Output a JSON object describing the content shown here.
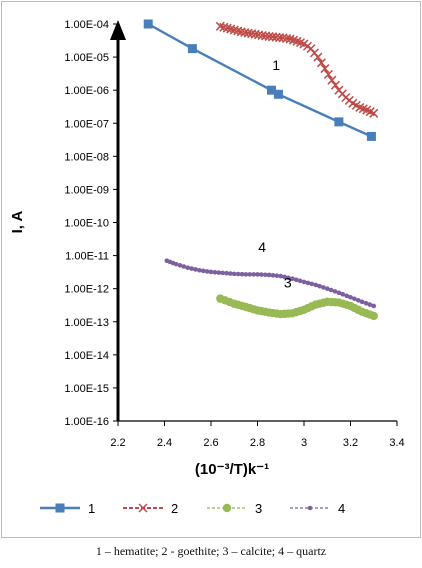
{
  "chart_data": {
    "type": "scatter",
    "xlabel": "(10⁻³/T)k⁻¹",
    "ylabel": "I, A",
    "xlim": [
      2.2,
      3.4
    ],
    "ylim_log10": [
      -16,
      -4
    ],
    "yscale": "log",
    "x_ticks": [
      "2.2",
      "2.4",
      "2.6",
      "2.8",
      "3",
      "3.2",
      "3.4"
    ],
    "y_ticks": [
      "1.00E-16",
      "1.00E-15",
      "1.00E-14",
      "1.00E-13",
      "1.00E-12",
      "1.00E-11",
      "1.00E-10",
      "1.00E-09",
      "1.00E-08",
      "1.00E-07",
      "1.00E-06",
      "1.00E-05",
      "1.00E-04"
    ],
    "grid": false,
    "legend_position": "bottom",
    "annotations": [
      {
        "text": "1",
        "x": 2.88,
        "y": 4e-06
      },
      {
        "text": "4",
        "x": 2.82,
        "y": 1.3e-11
      },
      {
        "text": "3",
        "x": 2.93,
        "y": 1.1e-12
      }
    ],
    "series": [
      {
        "name": "1",
        "color": "#4a7ebb",
        "marker": "square",
        "x": [
          2.33,
          2.52,
          2.86,
          2.89,
          3.15,
          3.29
        ],
        "y": [
          0.0001,
          1.8e-05,
          1e-06,
          7.5e-07,
          1.1e-07,
          4e-08
        ]
      },
      {
        "name": "2",
        "color": "#be4b48",
        "marker": "x",
        "x": [
          2.64,
          2.67,
          2.7,
          2.73,
          2.76,
          2.79,
          2.82,
          2.85,
          2.88,
          2.91,
          2.94,
          2.97,
          3.0,
          3.03,
          3.06,
          3.09,
          3.12,
          3.15,
          3.18,
          3.21,
          3.24,
          3.27,
          3.3
        ],
        "y": [
          8.5e-05,
          7.5e-05,
          6.6e-05,
          5.8e-05,
          5.3e-05,
          4.9e-05,
          4.5e-05,
          4.2e-05,
          4e-05,
          3.8e-05,
          3.5e-05,
          3e-05,
          2.5e-05,
          1.8e-05,
          1e-05,
          4.5e-06,
          2e-06,
          1e-06,
          6e-07,
          4e-07,
          3e-07,
          2.5e-07,
          2e-07
        ]
      },
      {
        "name": "3",
        "color": "#98b954",
        "marker": "circle",
        "x": [
          2.64,
          2.7,
          2.75,
          2.8,
          2.85,
          2.9,
          2.95,
          3.0,
          3.05,
          3.1,
          3.15,
          3.2,
          3.25,
          3.3
        ],
        "y": [
          5e-13,
          3.5e-13,
          2.8e-13,
          2.2e-13,
          1.9e-13,
          1.7e-13,
          1.8e-13,
          2.3e-13,
          3.3e-13,
          4e-13,
          3.8e-13,
          3e-13,
          2e-13,
          1.5e-13
        ]
      },
      {
        "name": "4",
        "color": "#7d60a0",
        "marker": "dot",
        "x": [
          2.41,
          2.45,
          2.5,
          2.55,
          2.6,
          2.65,
          2.7,
          2.75,
          2.8,
          2.85,
          2.9,
          2.95,
          3.0,
          3.05,
          3.1,
          3.15,
          3.2,
          3.25,
          3.3
        ],
        "y": [
          7e-12,
          5.5e-12,
          4.3e-12,
          3.6e-12,
          3.2e-12,
          3e-12,
          2.8e-12,
          2.7e-12,
          2.7e-12,
          2.6e-12,
          2.4e-12,
          2e-12,
          1.6e-12,
          1.3e-12,
          1e-12,
          7.5e-13,
          5.5e-13,
          4e-13,
          3e-13
        ]
      }
    ]
  },
  "caption": "1 – hematite; 2 - goethite; 3 – calcite; 4 – quartz"
}
